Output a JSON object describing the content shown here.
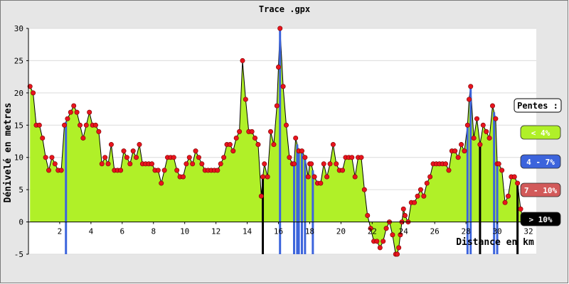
{
  "chart_data": {
    "type": "area",
    "title": "Trace .gpx",
    "xlabel": "Distance en km",
    "ylabel": "Dénivelé en metres",
    "xlim": [
      0,
      32.5
    ],
    "ylim": [
      -5,
      30
    ],
    "x_ticks": [
      2,
      4,
      6,
      8,
      10,
      12,
      14,
      16,
      18,
      20,
      22,
      24,
      26,
      28,
      30,
      32
    ],
    "y_ticks": [
      -5,
      0,
      5,
      10,
      15,
      20,
      25,
      30
    ],
    "grid": "horizontal",
    "area_color": "#b0f028",
    "marker_color": "#e8141e",
    "series": [
      {
        "x": [
          0.1,
          0.3,
          0.5,
          0.7,
          0.9,
          1.1,
          1.3,
          1.5,
          1.7,
          1.9,
          2.1,
          2.3,
          2.5,
          2.7,
          2.9,
          3.1,
          3.3,
          3.5,
          3.7,
          3.9,
          4.1,
          4.3,
          4.5,
          4.7,
          4.9,
          5.1,
          5.3,
          5.5,
          5.7,
          5.9,
          6.1,
          6.3,
          6.5,
          6.7,
          6.9,
          7.1,
          7.3,
          7.5,
          7.7,
          7.9,
          8.1,
          8.3,
          8.5,
          8.7,
          8.9,
          9.1,
          9.3,
          9.5,
          9.7,
          9.9,
          10.1,
          10.3,
          10.5,
          10.7,
          10.9,
          11.1,
          11.3,
          11.5,
          11.7,
          11.9,
          12.1,
          12.3,
          12.5,
          12.7,
          12.9,
          13.1,
          13.3,
          13.5,
          13.7,
          13.9,
          14.1,
          14.3,
          14.5,
          14.7,
          14.9,
          15.0,
          15.1,
          15.3,
          15.5,
          15.7,
          15.9,
          16.0,
          16.1,
          16.3,
          16.5,
          16.7,
          16.9,
          17.0,
          17.1,
          17.3,
          17.5,
          17.7,
          17.9,
          18.0,
          18.1,
          18.3,
          18.5,
          18.7,
          18.9,
          19.1,
          19.3,
          19.5,
          19.7,
          19.9,
          20.1,
          20.3,
          20.5,
          20.7,
          20.9,
          21.1,
          21.3,
          21.5,
          21.7,
          21.9,
          22.1,
          22.3,
          22.5,
          22.7,
          22.9,
          23.1,
          23.3,
          23.5,
          23.6,
          23.7,
          23.8,
          23.9,
          24.0,
          24.1,
          24.3,
          24.5,
          24.7,
          24.9,
          25.1,
          25.3,
          25.5,
          25.7,
          25.9,
          26.1,
          26.3,
          26.5,
          26.7,
          26.9,
          27.1,
          27.3,
          27.5,
          27.7,
          27.9,
          28.1,
          28.2,
          28.3,
          28.5,
          28.7,
          28.9,
          29.1,
          29.3,
          29.5,
          29.7,
          29.9,
          30.0,
          30.1,
          30.3,
          30.5,
          30.7,
          30.9,
          31.1,
          31.3,
          31.5,
          31.7
        ],
        "y": [
          21,
          20,
          15,
          15,
          13,
          10,
          8,
          10,
          9,
          8,
          8,
          15,
          16,
          17,
          18,
          17,
          15,
          13,
          15,
          17,
          15,
          15,
          14,
          9,
          10,
          9,
          12,
          8,
          8,
          8,
          11,
          10,
          9,
          11,
          10,
          12,
          9,
          9,
          9,
          9,
          8,
          8,
          6,
          8,
          10,
          10,
          10,
          8,
          7,
          7,
          9,
          10,
          9,
          11,
          10,
          9,
          8,
          8,
          8,
          8,
          8,
          9,
          10,
          12,
          12,
          11,
          13,
          14,
          25,
          19,
          14,
          14,
          13,
          12,
          4,
          7,
          9,
          7,
          14,
          12,
          18,
          24,
          30,
          21,
          15,
          10,
          9,
          9,
          13,
          11,
          11,
          10,
          7,
          9,
          9,
          7,
          6,
          6,
          9,
          7,
          9,
          12,
          9,
          8,
          8,
          10,
          10,
          10,
          7,
          10,
          10,
          5,
          1,
          -1,
          -3,
          -3,
          -4,
          -3,
          -1,
          0,
          -2,
          -5,
          -5,
          -4,
          -2,
          0,
          2,
          1,
          0,
          3,
          3,
          4,
          5,
          4,
          6,
          7,
          9,
          9,
          9,
          9,
          9,
          8,
          11,
          11,
          10,
          12,
          11,
          15,
          19,
          21,
          13,
          16,
          12,
          15,
          14,
          13,
          18,
          16,
          9,
          9,
          8,
          3,
          4,
          7,
          7,
          6,
          2,
          0
        ]
      }
    ],
    "slope_bars": [
      {
        "x": 2.4,
        "class": "blue"
      },
      {
        "x": 15.0,
        "class": "black"
      },
      {
        "x": 16.1,
        "class": "blue"
      },
      {
        "x": 17.0,
        "class": "blue"
      },
      {
        "x": 17.2,
        "class": "blue"
      },
      {
        "x": 17.3,
        "class": "blue"
      },
      {
        "x": 17.5,
        "class": "blue"
      },
      {
        "x": 17.7,
        "class": "blue"
      },
      {
        "x": 18.2,
        "class": "blue"
      },
      {
        "x": 28.1,
        "class": "blue"
      },
      {
        "x": 28.3,
        "class": "blue"
      },
      {
        "x": 28.9,
        "class": "black"
      },
      {
        "x": 29.8,
        "class": "blue"
      },
      {
        "x": 30.0,
        "class": "blue"
      },
      {
        "x": 31.3,
        "class": "black"
      }
    ],
    "legend": {
      "title": "Pentes :",
      "position": "right",
      "items": [
        {
          "label": "< 4%",
          "color": "#b0f028"
        },
        {
          "label": "4 - 7%",
          "color": "#3c64dc"
        },
        {
          "label": "7 - 10%",
          "color": "#d25a5a"
        },
        {
          "label": "> 10%",
          "color": "#000000"
        }
      ]
    },
    "colors": {
      "blue": "#3c64dc",
      "black": "#000000"
    }
  }
}
